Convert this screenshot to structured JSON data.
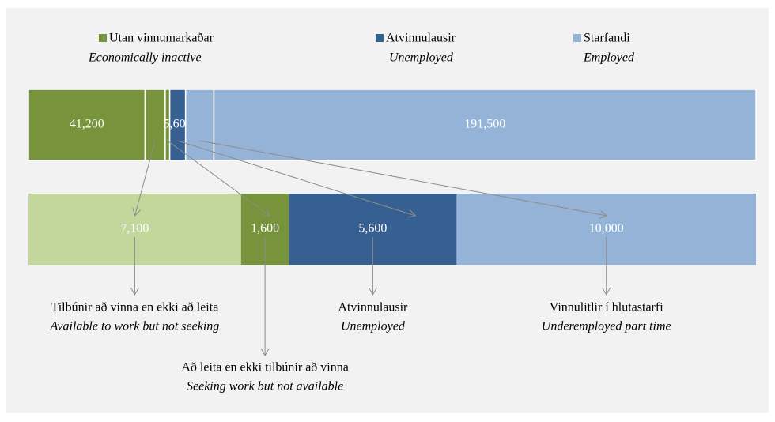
{
  "chart_data": {
    "type": "stacked-bar",
    "legend": [
      {
        "name": "Utan vinnumarkaðar",
        "name_en": "Economically inactive",
        "color": "#77933c"
      },
      {
        "name": "Atvinnulausir",
        "name_en": "Unemployed",
        "color": "#376092"
      },
      {
        "name": "Starfandi",
        "name_en": "Employed",
        "color": "#95b3d7"
      }
    ],
    "bars": [
      {
        "segments": [
          {
            "value": 41200,
            "label": "41,200",
            "color": "#77933c"
          },
          {
            "value": 7100,
            "color": "#77933c"
          },
          {
            "value": 1600,
            "color": "#77933c"
          },
          {
            "value": 5600,
            "label": "5,600",
            "color": "#376092"
          },
          {
            "value": 10000,
            "color": "#95b3d7"
          },
          {
            "value": 191500,
            "label": "191,500",
            "color": "#95b3d7"
          }
        ]
      },
      {
        "segments": [
          {
            "value": 7100,
            "label": "7,100",
            "color": "#c3d69b"
          },
          {
            "value": 1600,
            "label": "1,600",
            "color": "#77933c"
          },
          {
            "value": 5600,
            "label": "5,600",
            "color": "#376092"
          },
          {
            "value": 10000,
            "label": "10,000",
            "color": "#95b3d7"
          }
        ]
      }
    ],
    "annotations": [
      {
        "text": "Tilbúnir að vinna en ekki að leita",
        "text_en": "Available to work but not seeking"
      },
      {
        "text": "Að leita en ekki tilbúnir að vinna",
        "text_en": "Seeking work but not available"
      },
      {
        "text": "Atvinnulausir",
        "text_en": "Unemployed"
      },
      {
        "text": "Vinnulitlir í hlutastarfi",
        "text_en": "Underemployed part time"
      }
    ]
  }
}
